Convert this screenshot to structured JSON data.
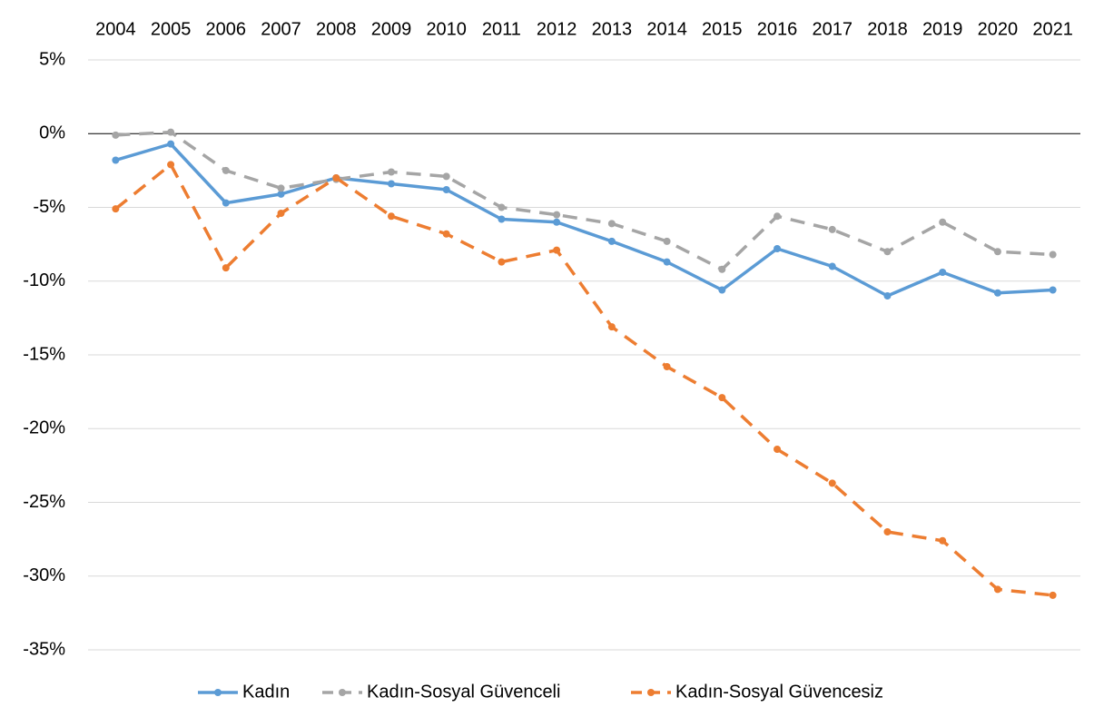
{
  "chart_data": {
    "type": "line",
    "categories": [
      "2004",
      "2005",
      "2006",
      "2007",
      "2008",
      "2009",
      "2010",
      "2011",
      "2012",
      "2013",
      "2014",
      "2015",
      "2016",
      "2017",
      "2018",
      "2019",
      "2020",
      "2021"
    ],
    "series": [
      {
        "name": "Kadın",
        "color": "#5b9bd5",
        "dashed": false,
        "values": [
          -1.8,
          -0.7,
          -4.7,
          -4.1,
          -3.0,
          -3.4,
          -3.8,
          -5.8,
          -6.0,
          -7.3,
          -8.7,
          -10.6,
          -7.8,
          -9.0,
          -11.0,
          -9.4,
          -10.8,
          -10.6
        ]
      },
      {
        "name": "Kadın-Sosyal Güvenceli",
        "color": "#a5a5a5",
        "dashed": true,
        "values": [
          -0.1,
          0.1,
          -2.5,
          -3.7,
          -3.1,
          -2.6,
          -2.9,
          -5.0,
          -5.5,
          -6.1,
          -7.3,
          -9.2,
          -5.6,
          -6.5,
          -8.0,
          -6.0,
          -8.0,
          -8.2
        ]
      },
      {
        "name": "Kadın-Sosyal Güvencesiz",
        "color": "#ed7d31",
        "dashed": true,
        "values": [
          -5.1,
          -2.1,
          -9.1,
          -5.4,
          -3.0,
          -5.6,
          -6.8,
          -8.7,
          -7.9,
          -13.1,
          -15.8,
          -17.9,
          -21.4,
          -23.7,
          -27.0,
          -27.6,
          -30.9,
          -31.3
        ]
      }
    ],
    "ylim": [
      -35,
      5
    ],
    "yticks": [
      {
        "value": 5,
        "label": "5%"
      },
      {
        "value": 0,
        "label": "0%"
      },
      {
        "value": -5,
        "label": "-5%"
      },
      {
        "value": -10,
        "label": "-10%"
      },
      {
        "value": -15,
        "label": "-15%"
      },
      {
        "value": -20,
        "label": "-20%"
      },
      {
        "value": -25,
        "label": "-25%"
      },
      {
        "value": -30,
        "label": "-30%"
      },
      {
        "value": -35,
        "label": "-35%"
      }
    ],
    "grid": true,
    "legend": "bottom"
  }
}
